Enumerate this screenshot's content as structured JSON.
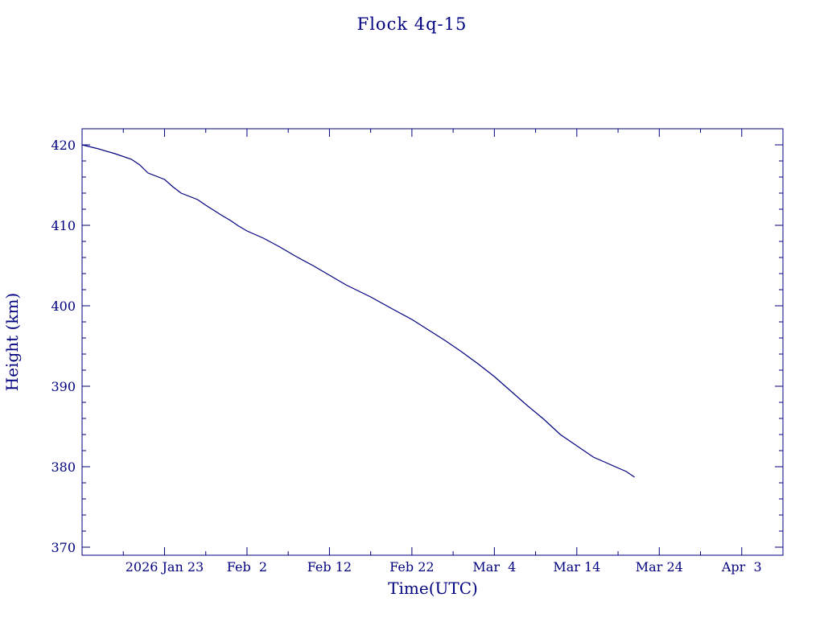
{
  "chart_data": {
    "type": "line",
    "title": "Flock 4q-15",
    "xlabel": "Time(UTC)",
    "ylabel": "Height (km)",
    "ylim": [
      369,
      422
    ],
    "xlim": [
      "2026-01-13",
      "2026-04-08"
    ],
    "grid": false,
    "colors": {
      "axis": "#000080",
      "line": "#000080"
    },
    "x_tick_labels": [
      {
        "date": "2026-01-23",
        "label": "2026 Jan 23"
      },
      {
        "date": "2026-02-02",
        "label": "Feb  2"
      },
      {
        "date": "2026-02-12",
        "label": "Feb 12"
      },
      {
        "date": "2026-02-22",
        "label": "Feb 22"
      },
      {
        "date": "2026-03-04",
        "label": "Mar  4"
      },
      {
        "date": "2026-03-14",
        "label": "Mar 14"
      },
      {
        "date": "2026-03-24",
        "label": "Mar 24"
      },
      {
        "date": "2026-04-03",
        "label": "Apr  3"
      }
    ],
    "y_ticks": [
      370,
      380,
      390,
      400,
      410,
      420
    ],
    "series": [
      {
        "x": [
          "2026-01-13",
          "2026-01-15",
          "2026-01-17",
          "2026-01-19",
          "2026-01-20",
          "2026-01-21",
          "2026-01-23",
          "2026-01-24",
          "2026-01-25",
          "2026-01-27",
          "2026-01-28",
          "2026-01-30",
          "2026-01-31",
          "2026-02-01",
          "2026-02-02",
          "2026-02-04",
          "2026-02-06",
          "2026-02-08",
          "2026-02-10",
          "2026-02-12",
          "2026-02-14",
          "2026-02-17",
          "2026-02-20",
          "2026-02-22",
          "2026-02-24",
          "2026-02-26",
          "2026-02-28",
          "2026-03-02",
          "2026-03-04",
          "2026-03-06",
          "2026-03-08",
          "2026-03-10",
          "2026-03-12",
          "2026-03-14",
          "2026-03-16",
          "2026-03-18",
          "2026-03-20",
          "2026-03-21"
        ],
        "y": [
          420.0,
          419.5,
          418.9,
          418.2,
          417.5,
          416.5,
          415.7,
          414.8,
          414.0,
          413.2,
          412.5,
          411.2,
          410.6,
          409.9,
          409.3,
          408.4,
          407.3,
          406.1,
          405.0,
          403.8,
          402.6,
          401.1,
          399.4,
          398.3,
          397.0,
          395.7,
          394.3,
          392.8,
          391.2,
          389.4,
          387.6,
          385.9,
          384.0,
          382.6,
          381.2,
          380.3,
          379.4,
          378.7
        ]
      }
    ]
  }
}
